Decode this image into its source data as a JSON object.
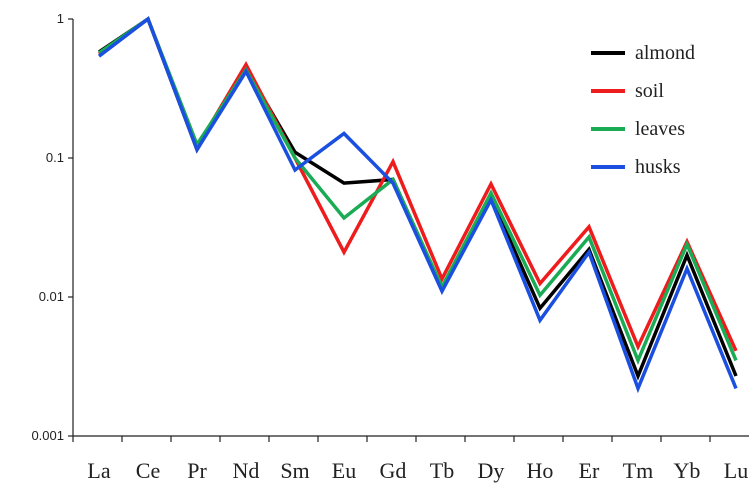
{
  "chart_data": {
    "type": "line",
    "title": "",
    "xlabel": "",
    "ylabel": "",
    "yscale": "log",
    "ylim": [
      0.001,
      1
    ],
    "yticks": [
      "1",
      "0.1",
      "0.01",
      "0.001"
    ],
    "ytick_values": [
      1,
      0.1,
      0.01,
      0.001
    ],
    "categories": [
      "La",
      "Ce",
      "Pr",
      "Nd",
      "Sm",
      "Eu",
      "Gd",
      "Tb",
      "Dy",
      "Ho",
      "Er",
      "Tm",
      "Yb",
      "Lu"
    ],
    "grid": false,
    "legend_position": "top-right",
    "series": [
      {
        "name": "almond",
        "color": "#000000",
        "values": [
          0.58,
          1,
          0.115,
          0.44,
          0.11,
          0.066,
          0.07,
          0.0115,
          0.052,
          0.0083,
          0.022,
          0.0027,
          0.02,
          0.0027
        ]
      },
      {
        "name": "soil",
        "color": "#ee1c1c",
        "values": [
          0.56,
          1,
          0.12,
          0.47,
          0.1,
          0.021,
          0.094,
          0.0135,
          0.065,
          0.0125,
          0.032,
          0.0044,
          0.025,
          0.0041
        ]
      },
      {
        "name": "leaves",
        "color": "#1aab55",
        "values": [
          0.57,
          1,
          0.125,
          0.43,
          0.1,
          0.037,
          0.07,
          0.0118,
          0.056,
          0.0103,
          0.027,
          0.0035,
          0.024,
          0.0035
        ]
      },
      {
        "name": "husks",
        "color": "#1a4fe0",
        "values": [
          0.54,
          1,
          0.115,
          0.42,
          0.082,
          0.15,
          0.066,
          0.011,
          0.05,
          0.0068,
          0.021,
          0.0022,
          0.016,
          0.0022
        ]
      }
    ]
  }
}
